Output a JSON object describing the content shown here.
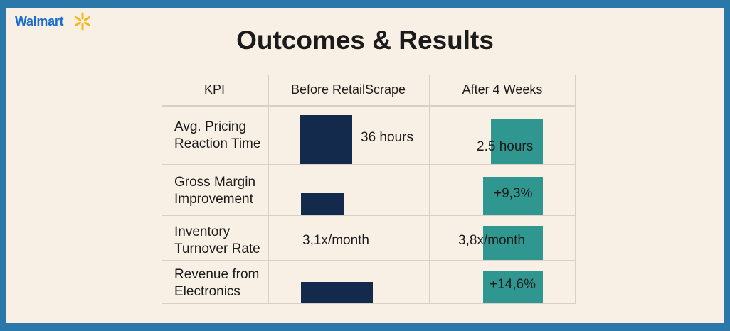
{
  "brand": {
    "name": "Walmart",
    "spark_color": "#f5b81c",
    "text_color": "#1a6dd0"
  },
  "title": "Outcomes & Results",
  "colors": {
    "before": "#132a4c",
    "after": "#2f9790",
    "frame": "#2a78aa",
    "background": "#f8efe5"
  },
  "table": {
    "headers": [
      "KPI",
      "Before RetailScrape",
      "After 4 Weeks"
    ],
    "rows": [
      {
        "kpi_line1": "Avg. Pricing",
        "kpi_line2": "Reaction Time",
        "before": "36 hours",
        "after": "2.5 hours"
      },
      {
        "kpi_line1": "Gross Margin",
        "kpi_line2": "Improvement",
        "before": "",
        "after": "+9,3%"
      },
      {
        "kpi_line1": "Inventory",
        "kpi_line2": "Turnover Rate",
        "before": "3,1x/month",
        "after": "3,8x/month"
      },
      {
        "kpi_line1": "Revenue from",
        "kpi_line2": "Electronics",
        "before": "",
        "after": "+14,6%"
      }
    ]
  }
}
